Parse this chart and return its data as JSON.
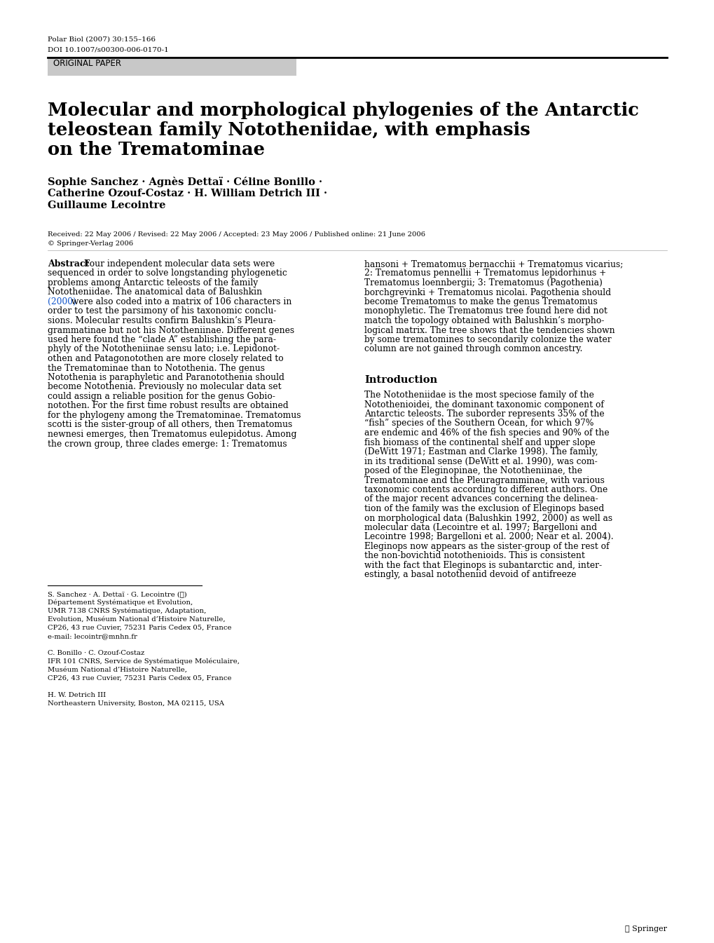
{
  "page_width": 10.2,
  "page_height": 13.45,
  "bg_color": "#ffffff",
  "top_meta_line1": "Polar Biol (2007) 30:155–166",
  "top_meta_line2": "DOI 10.1007/s00300-006-0170-1",
  "original_paper_label": "ORIGINAL PAPER",
  "title_line1": "Molecular and morphological phylogenies of the Antarctic",
  "title_line2": "teleostean family Nototheniidae, with emphasis",
  "title_line3": "on the Trematominae",
  "authors_line1": "Sophie Sanchez · Agnès Dettaï · Céline Bonillo ·",
  "authors_line2": "Catherine Ozouf-Costaz · H. William Detrich III ·",
  "authors_line3": "Guillaume Lecointre",
  "dates_line1": "Received: 22 May 2006 / Revised: 22 May 2006 / Accepted: 23 May 2006 / Published online: 21 June 2006",
  "dates_line2": "© Springer-Verlag 2006",
  "abstract_label": "Abstract",
  "abstract_col1": "Four independent molecular data sets were\nsequenced in order to solve longstanding phylogenetic\nproblems among Antarctic teleosts of the family\nNototheniidae. The anatomical data of Balushkin\n(2000) were also coded into a matrix of 106 characters in\norder to test the parsimony of his taxonomic conclu-\nsions. Molecular results confirm Balushkin’s Pleura-\ngrammatinae but not his Nototheniinae. Different genes\nused here found the “clade A” establishing the para-\nphyly of the Nototheniinae sensu lato; i.e. Lepidonot-\nothen and Patagonotothen are more closely related to\nthe Trematominae than to Notothenia. The genus\nNotothenia is paraphyletic and Paranotothenia should\nbecome Notothenia. Previously no molecular data set\ncould assign a reliable position for the genus Gobio-\nnotothen. For the first time robust results are obtained\nfor the phylogeny among the Trematominae. Trematomus\nscotti is the sister-group of all others, then Trematomus\nnewnesi emerges, then Trematomus eulepidotus. Among\nthe crown group, three clades emerge: 1: Trematomus",
  "abstract_col2": "hansoni + Trematomus bernacchii + Trematomus vicarius;\n2: Trematomus pennellii + Trematomus lepidorhinus +\nTrematomus loennbergii; 3: Trematomus (Pagothenia)\nborchgrevinki + Trematomus nicolai. Pagothenia should\nbecome Trematomus to make the genus Trematomus\nmonophyletic. The Trematomus tree found here did not\nmatch the topology obtained with Balushkin’s morpho-\nlogical matrix. The tree shows that the tendencies shown\nby some trematomines to secondarily colonize the water\ncolumn are not gained through common ancestry.",
  "intro_heading": "Introduction",
  "intro_col2": "The Nototheniidae is the most speciose family of the\nNotothenioidei, the dominant taxonomic component of\nAntarctic teleosts. The suborder represents 35% of the\n“fish” species of the Southern Ocean, for which 97%\nare endemic and 46% of the fish species and 90% of the\nfish biomass of the continental shelf and upper slope\n(DeWitt 1971; Eastman and Clarke 1998). The family,\nin its traditional sense (DeWitt et al. 1990), was com-\nposed of the Eleginopinae, the Nototheniinae, the\nTrematominae and the Pleuragramminae, with various\ntaxonomic contents according to different authors. One\nof the major recent advances concerning the delinea-\ntion of the family was the exclusion of Eleginops based\non morphological data (Balushkin 1992, 2000) as well as\nmolecular data (Lecointre et al. 1997; Bargelloni and\nLecointre 1998; Bargelloni et al. 2000; Near et al. 2004).\nEleginops now appears as the sister-group of the rest of\nthe non-bovichtid notothenioids. This is consistent\nwith the fact that Eleginops is subantarctic and, inter-\nestingly, a basal nototheniid devoid of antifreeze",
  "footnote_line1": "S. Sanchez · A. Dettaï · G. Lecointre (✉)",
  "footnote_line2": "Département Systématique et Evolution,",
  "footnote_line3": "UMR 7138 CNRS Systématique, Adaptation,",
  "footnote_line4": "Evolution, Muséum National d’Histoire Naturelle,",
  "footnote_line5": "CP26, 43 rue Cuvier, 75231 Paris Cedex 05, France",
  "footnote_line6": "e-mail: lecointr@mnhn.fr",
  "footnote_line7": "",
  "footnote_line8": "C. Bonillo · C. Ozouf-Costaz",
  "footnote_line9": "IFR 101 CNRS, Service de Systématique Moléculaire,",
  "footnote_line10": "Muséum National d’Histoire Naturelle,",
  "footnote_line11": "CP26, 43 rue Cuvier, 75231 Paris Cedex 05, France",
  "footnote_line12": "",
  "footnote_line13": "H. W. Detrich III",
  "footnote_line14": "Northeastern University, Boston, MA 02115, USA",
  "springer_logo": "④ Springer",
  "link_color": "#1155cc"
}
